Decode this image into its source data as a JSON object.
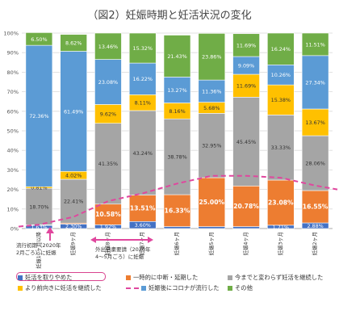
{
  "title": "（図2）妊娠時期と妊活状況の変化",
  "chart_data": {
    "type": "bar",
    "stacked": true,
    "title": "（図2）妊娠時期と妊活状況の変化",
    "ylim": [
      0,
      100
    ],
    "yticks": [
      "0%",
      "10%",
      "20%",
      "30%",
      "40%",
      "50%",
      "60%",
      "70%",
      "80%",
      "90%",
      "100%"
    ],
    "categories": [
      "妊娠10ヶ月以降",
      "妊娠9ヶ月",
      "妊娠8ヶ月",
      "妊娠7ヶ月",
      "妊娠6ヶ月",
      "妊娠5ヶ月",
      "妊娠4ヶ月",
      "妊娠3ヶ月",
      "妊娠2ヶ月"
    ],
    "series": [
      {
        "name": "妊活を取りやめた",
        "color": "#4472c4",
        "values": [
          1.63,
          2.3,
          1.92,
          3.6,
          1.0,
          1.0,
          1.0,
          1.71,
          2.88
        ],
        "labels": [
          "1.63%",
          "2.30%",
          "1.92%",
          "3.60%",
          "",
          "",
          "",
          "1.71%",
          "2.88%"
        ]
      },
      {
        "name": "一時的に中断・延期した",
        "color": "#ed7d31",
        "values": [
          0.25,
          0.5,
          10.58,
          13.51,
          16.33,
          25.0,
          20.78,
          23.08,
          16.55
        ],
        "labels": [
          "",
          "",
          "10.58%",
          "13.51%",
          "16.33%",
          "25.00%",
          "20.78%",
          "23.08%",
          "16.55%"
        ]
      },
      {
        "name": "今までと変わらず妊活を継続した",
        "color": "#a5a5a5",
        "values": [
          18.7,
          22.41,
          41.35,
          43.24,
          38.78,
          32.95,
          45.45,
          33.33,
          28.06
        ],
        "labels": [
          "18.70%",
          "22.41%",
          "41.35%",
          "43.24%",
          "38.78%",
          "32.95%",
          "45.45%",
          "33.33%",
          "28.06%"
        ]
      },
      {
        "name": "より前向きに妊活を継続した",
        "color": "#ffc000",
        "values": [
          0.81,
          4.02,
          9.62,
          8.11,
          8.16,
          5.68,
          11.69,
          15.38,
          13.67
        ],
        "labels": [
          "0.81%",
          "4.02%",
          "9.62%",
          "8.11%",
          "8.16%",
          "5.68%",
          "11.69%",
          "15.38%",
          "13.67%"
        ]
      },
      {
        "name": "妊娠後にコロナが流行した",
        "color": "#5b9bd5",
        "values": [
          72.36,
          61.49,
          23.08,
          16.22,
          13.27,
          11.36,
          9.09,
          10.26,
          27.34
        ],
        "labels": [
          "72.36%",
          "61.49%",
          "23.08%",
          "16.22%",
          "13.27%",
          "11.36%",
          "9.09%",
          "10.26%",
          "27.34%"
        ]
      },
      {
        "name": "その他",
        "color": "#70ad47",
        "values": [
          6.5,
          8.62,
          13.46,
          15.32,
          21.43,
          23.86,
          11.69,
          16.24,
          11.51
        ],
        "labels": [
          "6.50%",
          "8.62%",
          "13.46%",
          "15.32%",
          "21.43%",
          "23.86%",
          "11.69%",
          "16.24%",
          "11.51%"
        ]
      }
    ],
    "trend": {
      "name": "妊娠後にコロナが流行した",
      "color": "#e0479e",
      "values": [
        2,
        6,
        14,
        18,
        23,
        27,
        27,
        26,
        22
      ]
    },
    "legend_position": "bottom"
  },
  "annotations": {
    "note1": "流行初期（2020年\n2月ごろ）に妊娠",
    "note2": "外出自粛要請（2020年\n4～5月ごろ）に妊娠"
  }
}
